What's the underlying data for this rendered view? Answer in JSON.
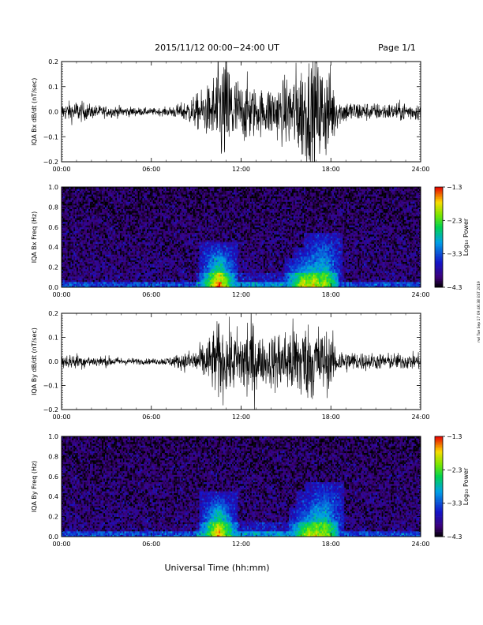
{
  "header": {
    "title": "2015/11/12  00:00−24:00 UT",
    "page": "Page 1/1"
  },
  "side_stamp": "rwl Tue Sep 17 09:46:38 EST 2019",
  "chart_data": [
    {
      "id": "bx-time",
      "type": "line",
      "ylabel": "IQA Bx dB/dt (nT/sec)",
      "xlim": [
        0,
        24
      ],
      "ylim": [
        -0.2,
        0.2
      ],
      "yticks": [
        "0.2",
        "0.1",
        "0.0",
        "−0.1",
        "−0.2"
      ],
      "xticks": [
        "00:00",
        "06:00",
        "12:00",
        "18:00",
        "24:00"
      ],
      "envelope": {
        "hours": [
          0,
          1,
          2,
          3,
          4,
          5,
          6,
          7,
          8,
          9,
          9.5,
          10,
          10.5,
          11,
          11.5,
          12,
          12.5,
          13,
          13.5,
          14,
          14.5,
          15,
          15.5,
          16,
          16.5,
          17,
          17.5,
          18,
          18.5,
          19,
          20,
          21,
          22,
          23,
          24
        ],
        "amplitude": [
          0.03,
          0.04,
          0.025,
          0.02,
          0.02,
          0.015,
          0.012,
          0.015,
          0.03,
          0.06,
          0.08,
          0.1,
          0.2,
          0.2,
          0.15,
          0.1,
          0.12,
          0.08,
          0.08,
          0.1,
          0.1,
          0.12,
          0.15,
          0.18,
          0.2,
          0.2,
          0.18,
          0.15,
          0.05,
          0.04,
          0.035,
          0.03,
          0.03,
          0.035,
          0.03
        ]
      }
    },
    {
      "id": "bx-spec",
      "type": "heatmap",
      "ylabel": "IQA Bx Freq (Hz)",
      "xlim": [
        0,
        24
      ],
      "ylim": [
        0,
        1.0
      ],
      "yticks": [
        "1.0",
        "0.8",
        "0.6",
        "0.4",
        "0.2",
        "0.0"
      ],
      "xticks": [
        "00:00",
        "06:00",
        "12:00",
        "18:00",
        "24:00"
      ],
      "colorbar": {
        "label": "Log₁₀ Power",
        "min": -4.3,
        "max": -1.3,
        "ticks": [
          "−1.3",
          "−2.3",
          "−3.3",
          "−4.3"
        ]
      },
      "features": [
        {
          "hour": 10.5,
          "max_freq": 0.45,
          "power": -2.0
        },
        {
          "hour": 16.2,
          "max_freq": 0.3,
          "power": -2.3
        },
        {
          "hour": 16.8,
          "max_freq": 0.4,
          "power": -2.3
        },
        {
          "hour": 17.5,
          "max_freq": 0.55,
          "power": -2.5
        }
      ]
    },
    {
      "id": "by-time",
      "type": "line",
      "ylabel": "IQA By dB/dt (nT/sec)",
      "xlim": [
        0,
        24
      ],
      "ylim": [
        -0.2,
        0.2
      ],
      "yticks": [
        "0.2",
        "0.1",
        "0.0",
        "−0.1",
        "−0.2"
      ],
      "xticks": [
        "00:00",
        "06:00",
        "12:00",
        "18:00",
        "24:00"
      ],
      "envelope": {
        "hours": [
          0,
          1,
          2,
          3,
          4,
          5,
          6,
          7,
          8,
          9,
          9.5,
          10,
          10.5,
          11,
          11.5,
          12,
          12.5,
          13,
          13.5,
          14,
          14.5,
          15,
          15.5,
          16,
          16.5,
          17,
          17.5,
          18,
          18.5,
          19,
          20,
          21,
          22,
          23,
          24
        ],
        "amplitude": [
          0.025,
          0.03,
          0.02,
          0.02,
          0.015,
          0.012,
          0.01,
          0.015,
          0.03,
          0.05,
          0.07,
          0.1,
          0.15,
          0.12,
          0.12,
          0.12,
          0.2,
          0.12,
          0.08,
          0.1,
          0.12,
          0.12,
          0.15,
          0.16,
          0.14,
          0.15,
          0.12,
          0.1,
          0.05,
          0.04,
          0.035,
          0.03,
          0.03,
          0.03,
          0.03
        ]
      }
    },
    {
      "id": "by-spec",
      "type": "heatmap",
      "ylabel": "IQA By Freq (Hz)",
      "xlim": [
        0,
        24
      ],
      "ylim": [
        0,
        1.0
      ],
      "yticks": [
        "1.0",
        "0.8",
        "0.6",
        "0.4",
        "0.2",
        "0.0"
      ],
      "xticks": [
        "00:00",
        "06:00",
        "12:00",
        "18:00",
        "24:00"
      ],
      "colorbar": {
        "label": "Log₁₀ Power",
        "min": -4.3,
        "max": -1.3,
        "ticks": [
          "−1.3",
          "−2.3",
          "−3.3",
          "−4.3"
        ]
      },
      "features": [
        {
          "hour": 10.5,
          "max_freq": 0.45,
          "power": -2.1
        },
        {
          "hour": 16.5,
          "max_freq": 0.3,
          "power": -2.4
        },
        {
          "hour": 17.0,
          "max_freq": 0.45,
          "power": -2.4
        },
        {
          "hour": 17.6,
          "max_freq": 0.55,
          "power": -2.5
        }
      ]
    }
  ],
  "xlabel": "Universal Time (hh:mm)"
}
